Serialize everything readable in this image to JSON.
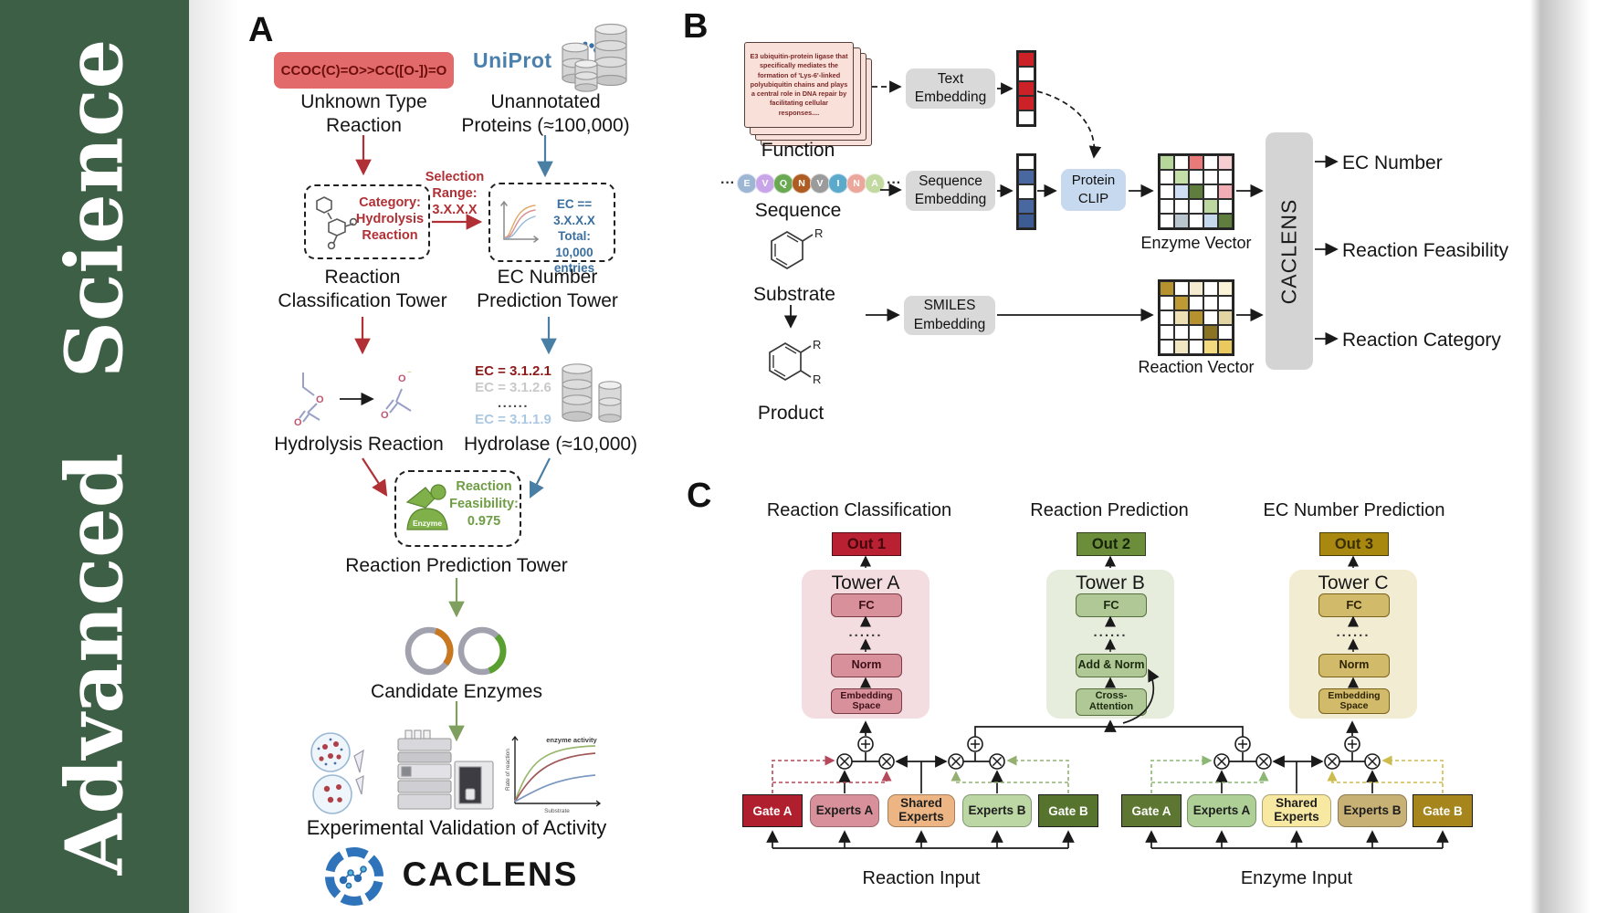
{
  "journal": {
    "title": "Advanced Science"
  },
  "panelA": {
    "label": "A",
    "smiles": "CCOC(C)=O>>CC([O-])=O",
    "unknown": [
      "Unknown Type",
      "Reaction"
    ],
    "uniprot": "UniProt",
    "unannotated": [
      "Unannotated",
      "Proteins (≈100,000)"
    ],
    "selection": [
      "Selection",
      "Range:",
      "3.X.X.X"
    ],
    "category": [
      "Category:",
      "Hydrolysis",
      "Reaction"
    ],
    "ecbox": [
      "EC == 3.X.X.X",
      "Total: 10,000",
      "entries"
    ],
    "tower1": [
      "Reaction",
      "Classification Tower"
    ],
    "tower2": [
      "EC Number",
      "Prediction Tower"
    ],
    "eclist": [
      "EC = 3.1.2.1",
      "EC = 3.1.2.6",
      "......",
      "EC = 3.1.1.9"
    ],
    "ecstyles": [
      "color:#8f1a1a;font-weight:700",
      "color:#c9c9c9;font-weight:700",
      "color:#4a4a4a;letter-spacing:1.5px;font-weight:700",
      "color:#abc8e2;font-weight:700"
    ],
    "hydrolysis": "Hydrolysis Reaction",
    "hydrolase": "Hydrolase (≈10,000)",
    "enzyme": "Enzyme",
    "feasibility": [
      "Reaction",
      "Feasibility:",
      "0.975"
    ],
    "tower3": "Reaction Prediction Tower",
    "candidates": "Candidate Enzymes",
    "validation": "Experimental Validation of Activity",
    "brand": "CACLENS",
    "graph": {
      "ylabel": "Rate of reaction",
      "xlabel": "Substrate",
      "note": "enzyme activity"
    }
  },
  "panelB": {
    "label": "B",
    "card": "E3 ubiquitin-protein ligase that specifically mediates the formation of 'Lys-6'-linked polyubiquitin chains and plays a central role in DNA repair by facilitating cellular responses....",
    "function": "Function",
    "dots": "···",
    "residues": [
      {
        "l": "E",
        "c": "#9db6d4"
      },
      {
        "l": "V",
        "c": "#c8a5e8"
      },
      {
        "l": "Q",
        "c": "#69a951"
      },
      {
        "l": "N",
        "c": "#ae5c22"
      },
      {
        "l": "V",
        "c": "#9b9b9b"
      },
      {
        "l": "I",
        "c": "#5ba9cb"
      },
      {
        "l": "N",
        "c": "#eba79c"
      },
      {
        "l": "A",
        "c": "#c3d9a2"
      }
    ],
    "sequence": "Sequence",
    "substrate": "Substrate",
    "product": "Product",
    "r": "R",
    "textEmb": [
      "Text",
      "Embedding"
    ],
    "seqEmb": [
      "Sequence",
      "Embedding"
    ],
    "smilesEmb": [
      "SMILES",
      "Embedding"
    ],
    "clip": [
      "Protein",
      "CLIP"
    ],
    "textVec": [
      "#cc2127",
      "#ffffff",
      "#cc2127",
      "#cc2127",
      "#ffffff"
    ],
    "seqVec": [
      "#ffffff",
      "#48689f",
      "#ffffff",
      "#48689f",
      "#3c5c93"
    ],
    "enzymeMatrix": [
      [
        "#b7d69b",
        "#ffffff",
        "#e87a7a",
        "#ffffff",
        "#f6cdd0"
      ],
      [
        "#ffffff",
        "#c4e0a8",
        "#ffffff",
        "#ffffff",
        "#ffffff"
      ],
      [
        "#ffffff",
        "#cfdef2",
        "#5f7d3c",
        "#ffffff",
        "#f2aeb4"
      ],
      [
        "#ffffff",
        "#ffffff",
        "#ffffff",
        "#bcd8a0",
        "#ffffff"
      ],
      [
        "#ffffff",
        "#b9c6d0",
        "#ffffff",
        "#c6d8ec",
        "#5f7d3c"
      ]
    ],
    "reactionMatrix": [
      [
        "#b5922e",
        "#ffffff",
        "#f3ead0",
        "#ffffff",
        "#faf3d8"
      ],
      [
        "#ffffff",
        "#bd9a33",
        "#ffffff",
        "#ffffff",
        "#ffffff"
      ],
      [
        "#ffffff",
        "#ece0b4",
        "#b5922e",
        "#ffffff",
        "#e3d4a4"
      ],
      [
        "#ffffff",
        "#ffffff",
        "#ffffff",
        "#8a7322",
        "#ffffff"
      ],
      [
        "#ffffff",
        "#f0e7c2",
        "#ffffff",
        "#f3da7e",
        "#eac95e"
      ]
    ],
    "enzymeVecLabel": "Enzyme Vector",
    "reactionVecLabel": "Reaction Vector",
    "bar": "CACLENS",
    "outputs": [
      "EC Number",
      "Reaction Feasibility",
      "Reaction Category"
    ]
  },
  "panelC": {
    "label": "C",
    "headings": [
      "Reaction Classification",
      "Reaction Prediction",
      "EC Number Prediction"
    ],
    "towerA": {
      "out": "Out 1",
      "title": "Tower A",
      "fc": "FC",
      "dots": "......",
      "mid": "Norm",
      "b1": "Embedding",
      "b2": "Space"
    },
    "towerB": {
      "out": "Out 2",
      "title": "Tower B",
      "fc": "FC",
      "dots": "......",
      "mid": "Add & Norm",
      "b1": "Cross-",
      "b2": "Attention"
    },
    "towerC": {
      "out": "Out 3",
      "title": "Tower C",
      "fc": "FC",
      "dots": "......",
      "mid": "Norm",
      "b1": "Embedding",
      "b2": "Space"
    },
    "reactionGroup": {
      "gateA": "Gate A",
      "expertsA": "Experts A",
      "sh1": "Shared",
      "sh2": "Experts",
      "expertsB": "Experts B",
      "gateB": "Gate B",
      "input": "Reaction Input"
    },
    "enzymeGroup": {
      "gateA": "Gate A",
      "expertsA": "Experts A",
      "sh1": "Shared",
      "sh2": "Experts",
      "expertsB": "Experts B",
      "gateB": "Gate B",
      "input": "Enzyme Input"
    }
  },
  "colors": {
    "sidebar": "#3d5f45",
    "smilesBox": "#e26a6a",
    "uniprotBlue": "#4a80ab",
    "arrowRed": "#b03036",
    "arrowBlue": "#4a7fa5",
    "arrowGreen": "#7f9f5f",
    "out1": "#b92031",
    "out2": "#6c8e3b",
    "out3": "#a8880f",
    "towerABg": "#f3dde1",
    "towerBBg": "#e6eddd",
    "towerCBg": "#f2ecd2",
    "reactionGateA": "#b01f2e",
    "reactionExpertsA": "#d8919b",
    "reactionShared": "#ecb583",
    "reactionExpertsB": "#bcd7a3",
    "reactionGateB": "#57742f",
    "enzymeGateA": "#5d7733",
    "enzymeExpertsA": "#aecf95",
    "enzymeShared": "#f8e9a2",
    "enzymeExpertsB": "#c8b174",
    "enzymeGateB": "#a5851c"
  }
}
